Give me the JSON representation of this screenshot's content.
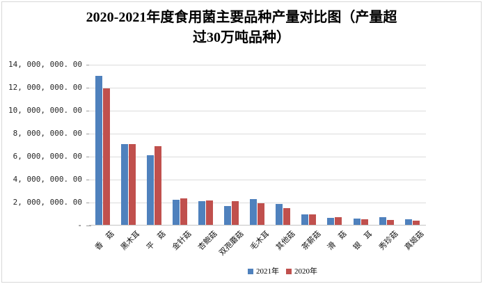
{
  "page": {
    "background": "#ffffff",
    "frame_border_color": "#d7d7d7"
  },
  "title_lines": [
    "2020-2021年度食用菌主要品种产量对比图（产量超",
    "过30万吨品种）"
  ],
  "chart_data": {
    "type": "bar",
    "title": "2020-2021年度食用菌主要品种产量对比图（产量超过30万吨品种）",
    "categories": [
      "香　菇",
      "黑木耳",
      "平　菇",
      "金针菇",
      "杏鲍菇",
      "双孢蘑菇",
      "毛木耳",
      "其他菇",
      "茶薪菇",
      "滑　菇",
      "银　耳",
      "秀珍菇",
      "真姬菇"
    ],
    "series": [
      {
        "name": "2021年",
        "color": "#4f81bd",
        "values": [
          12970000,
          7050000,
          6080000,
          2160000,
          2040000,
          1620000,
          2220000,
          1800000,
          880000,
          620000,
          520000,
          640000,
          500000
        ]
      },
      {
        "name": "2020年",
        "color": "#c0504d",
        "values": [
          11880000,
          7060000,
          6830000,
          2280000,
          2100000,
          2040000,
          1870000,
          1450000,
          920000,
          680000,
          480000,
          440000,
          390000
        ]
      }
    ],
    "y_tick_labels": [
      "14, 000, 000. 00",
      "12, 000, 000. 00",
      "10, 000, 000. 00",
      "8, 000, 000. 00",
      "6, 000, 000. 00",
      "4, 000, 000. 00",
      "2, 000, 000. 00",
      "-"
    ],
    "y_tick_values": [
      14000000,
      12000000,
      10000000,
      8000000,
      6000000,
      4000000,
      2000000,
      0
    ],
    "ylim": [
      0,
      14000000
    ],
    "grid": true,
    "gridline_color": "#dcdcdc",
    "legend_position": "bottom-center",
    "legend": [
      "2021年",
      "2020年"
    ]
  }
}
